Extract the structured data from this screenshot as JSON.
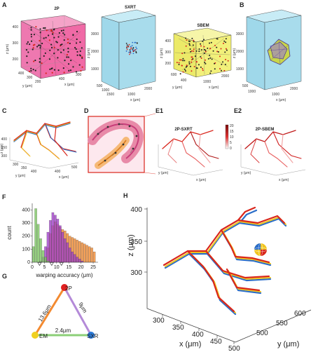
{
  "panels": {
    "A": "A",
    "B": "B",
    "C": "C",
    "D": "D",
    "E1": "E1",
    "E2": "E2",
    "F": "F",
    "G": "G",
    "H": "H"
  },
  "panel_a": {
    "titles": [
      "2P",
      "SXRT",
      "SBEM"
    ],
    "axis_x": "x (μm)",
    "axis_y": "y (μm)",
    "axis_z": "z (μm)",
    "ticks_2p_z": [
      "400",
      "300",
      "200"
    ],
    "ticks_2p_y": [
      "400",
      "300",
      "200"
    ],
    "ticks_2p_x": [
      "400",
      "300"
    ],
    "ticks_sxrt_z": [
      "3000",
      "2000",
      "1000"
    ],
    "ticks_sxrt_y": [
      "500",
      "1000",
      "1500"
    ],
    "ticks_sxrt_x": [
      "1000",
      "2000"
    ],
    "ticks_sbem_z": [
      "400",
      "300",
      "200"
    ],
    "ticks_sbem_y": [
      "600",
      "400"
    ],
    "ticks_sbem_x": [
      "1000",
      "2000"
    ],
    "colors": {
      "pink": "#f06aa6",
      "blue": "#a8dcec",
      "yellow": "#f2f07a"
    }
  },
  "panel_b": {
    "ticks_z": [
      "3000",
      "2000",
      "1000"
    ],
    "ticks_y": [
      "500",
      "1000"
    ],
    "ticks_x": [
      "1000",
      "2000"
    ]
  },
  "panel_c": {
    "ticks_z": [
      "400",
      "350",
      "300"
    ],
    "ticks_y": [
      "300",
      "350",
      "400"
    ],
    "ticks_x": [
      "400",
      "500"
    ]
  },
  "panel_e1": {
    "title": "2P-SXRT",
    "colorbar": [
      "20",
      "15",
      "10",
      "5",
      "0"
    ]
  },
  "panel_e2": {
    "title": "2P-SBEM"
  },
  "chart_data": {
    "type": "bar",
    "xlabel": "warping accuracy (μm)",
    "ylabel": "count",
    "xticks": [
      "0",
      "5",
      "10",
      "15",
      "20",
      "25"
    ],
    "yticks": [
      "0",
      "100",
      "200",
      "300",
      "400"
    ],
    "ylim": [
      0,
      450
    ],
    "bin_width": 1,
    "series": [
      {
        "color": "#7cc462",
        "x": [
          0,
          1,
          2,
          3,
          4,
          5,
          6
        ],
        "values": [
          120,
          410,
          290,
          180,
          90,
          40,
          10
        ]
      },
      {
        "color": "#a040c8",
        "x": [
          3,
          4,
          5,
          6,
          7,
          8,
          9,
          10,
          11,
          12,
          13,
          14,
          15,
          16,
          17,
          18,
          19,
          20
        ],
        "values": [
          10,
          40,
          120,
          230,
          320,
          380,
          360,
          330,
          280,
          230,
          180,
          150,
          110,
          80,
          60,
          40,
          25,
          10
        ]
      },
      {
        "color": "#f38a30",
        "x": [
          5,
          6,
          7,
          8,
          9,
          10,
          11,
          12,
          13,
          14,
          15,
          16,
          17,
          18,
          19,
          20,
          21,
          22,
          23,
          24,
          25
        ],
        "values": [
          30,
          110,
          220,
          280,
          310,
          290,
          270,
          250,
          240,
          220,
          200,
          190,
          180,
          170,
          160,
          150,
          140,
          130,
          120,
          110,
          80
        ]
      }
    ],
    "markers_x": [
      3,
      8,
      12
    ]
  },
  "panel_g": {
    "nodes": [
      "2P",
      "EM",
      "SXR"
    ],
    "edges": [
      "13.6μm",
      "9μm",
      "2.4μm"
    ]
  },
  "panel_h": {
    "zlabel": "z (μm)",
    "xlabel": "x (μm)",
    "ylabel": "y (μm)",
    "zticks": [
      "400",
      "350",
      "300"
    ],
    "xticks": [
      "300",
      "350",
      "400",
      "450",
      "500"
    ],
    "yticks": [
      "500",
      "550",
      "600"
    ]
  }
}
